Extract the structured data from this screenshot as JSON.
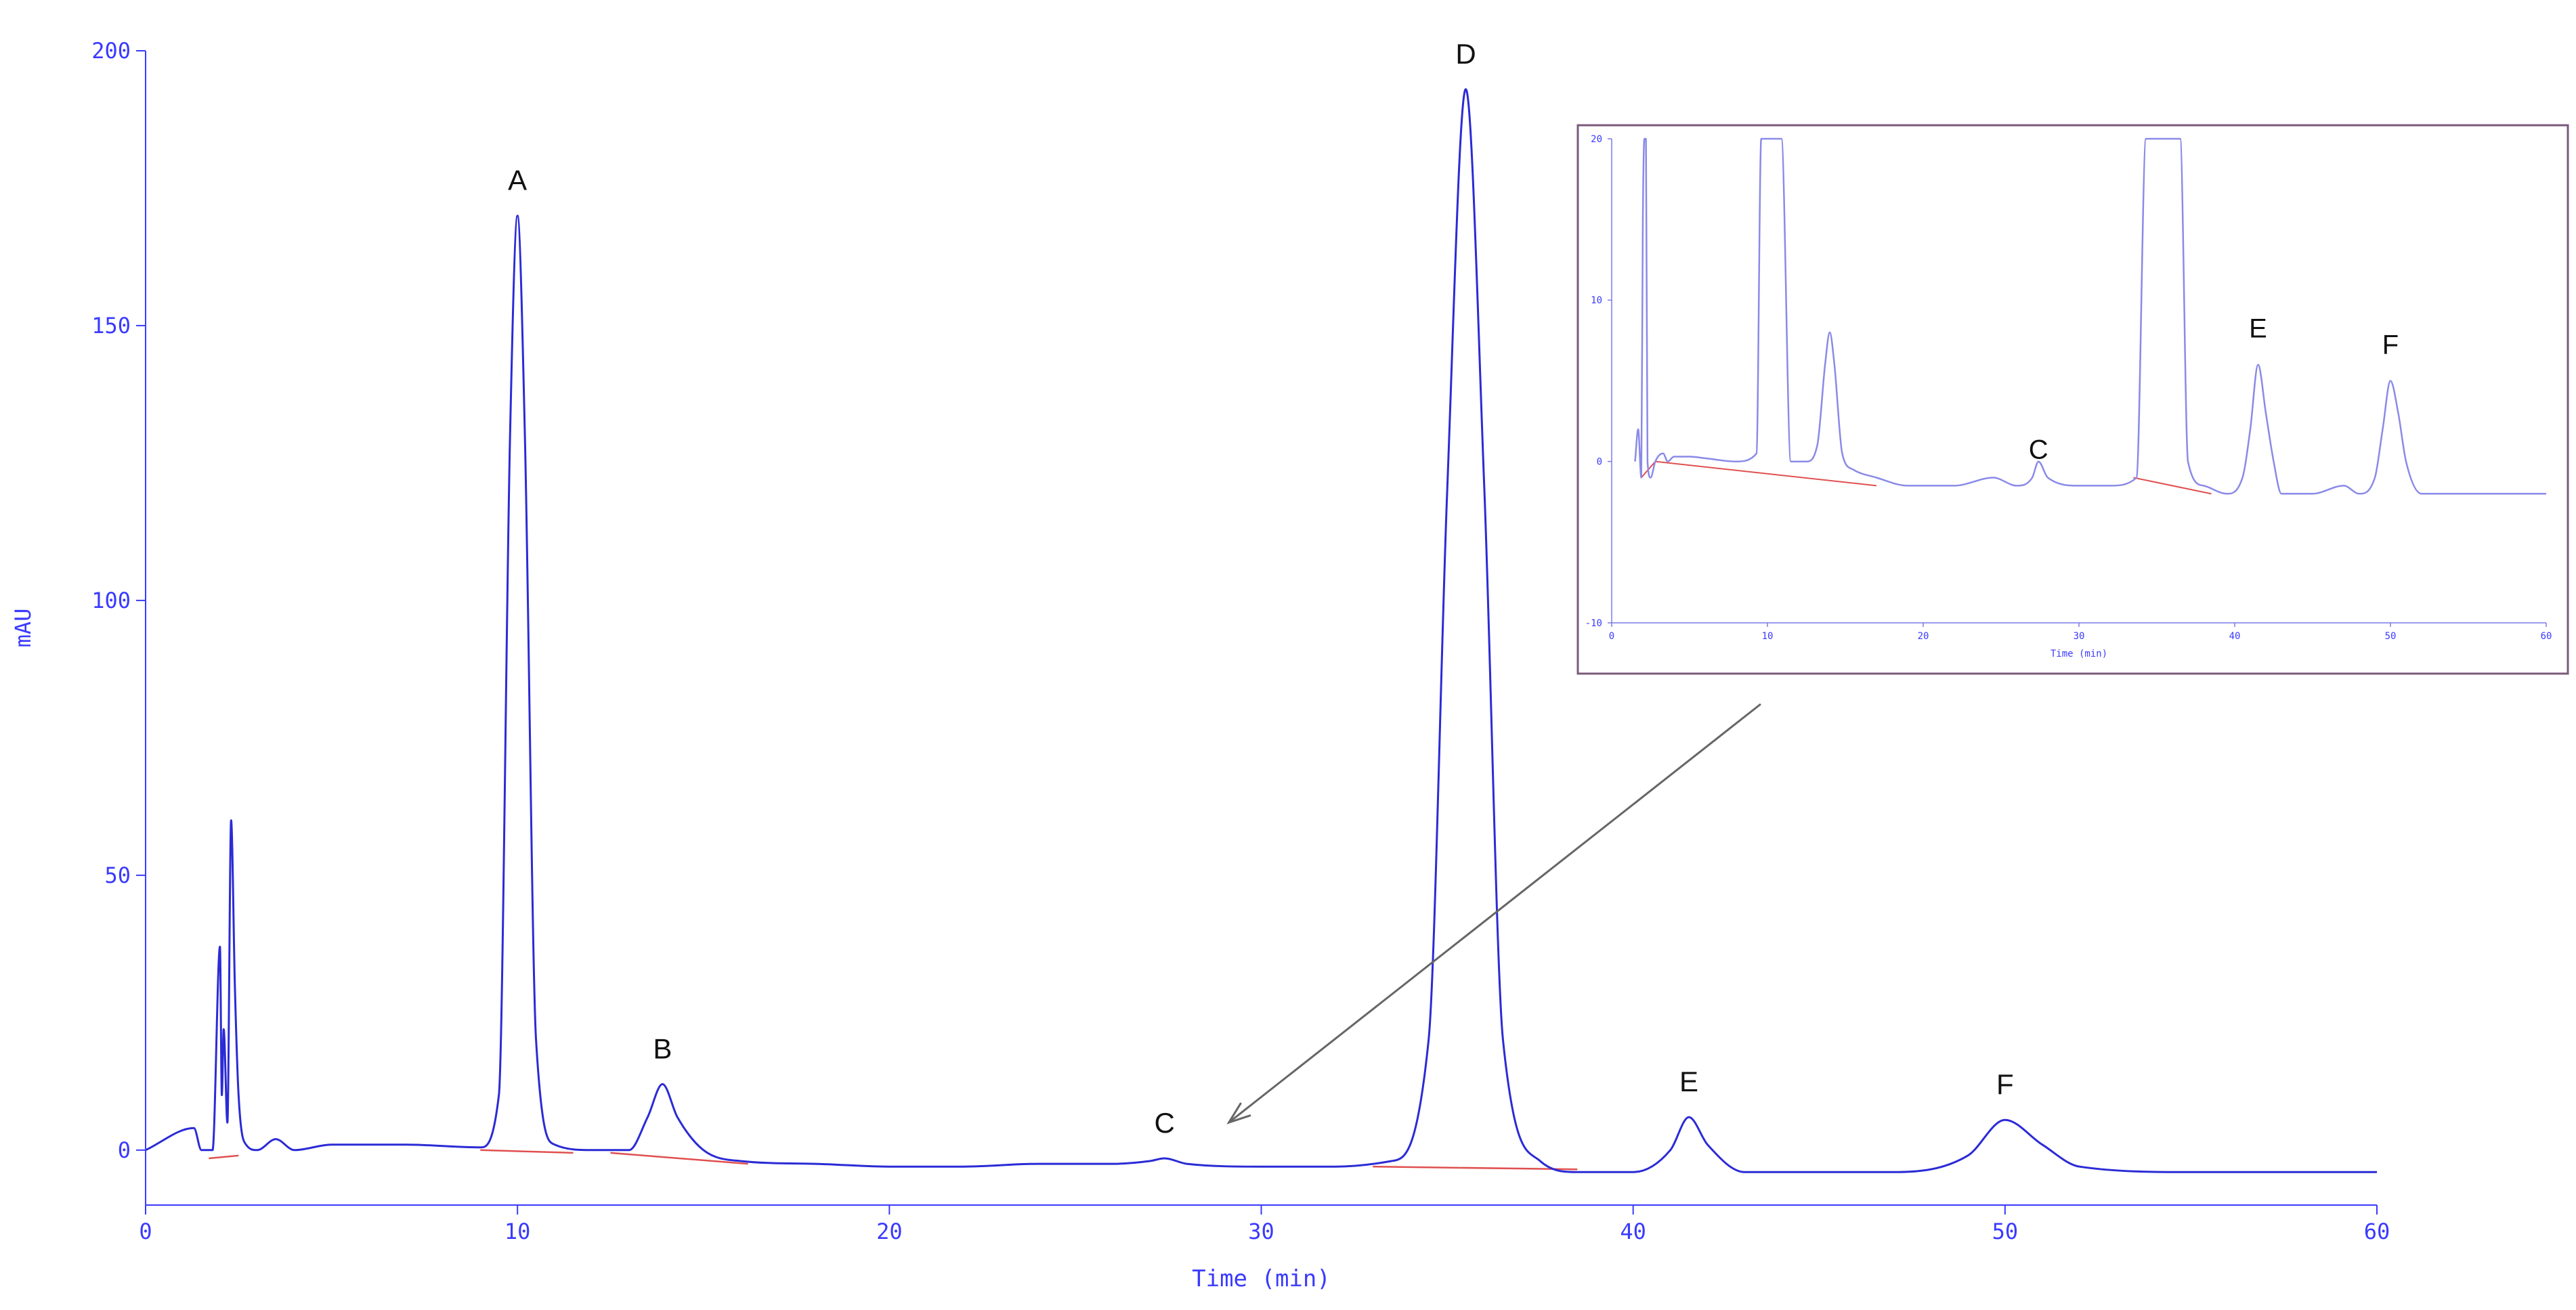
{
  "chart_data": [
    {
      "type": "line",
      "title": "",
      "xlabel": "Time (min)",
      "ylabel": "mAU",
      "xlim": [
        0,
        60
      ],
      "ylim": [
        -10,
        200
      ],
      "x_ticks": [
        "0",
        "10",
        "20",
        "30",
        "40",
        "50",
        "60"
      ],
      "y_ticks": [
        "0",
        "50",
        "100",
        "150",
        "200"
      ],
      "grid": false,
      "colors": {
        "trace": "#2b2bd6",
        "baseline": "#e05050",
        "axis": "#3a3aff"
      },
      "peaks": [
        {
          "label": "A",
          "time": 10.0,
          "height": 170
        },
        {
          "label": "B",
          "time": 13.9,
          "height": 12
        },
        {
          "label": "C",
          "time": 27.4,
          "height": -1.5
        },
        {
          "label": "D",
          "time": 35.5,
          "height": 193
        },
        {
          "label": "E",
          "time": 41.5,
          "height": 6
        },
        {
          "label": "F",
          "time": 50.0,
          "height": 5.5
        }
      ],
      "series": [
        {
          "x": [
            0,
            1.3,
            1.5,
            1.8,
            2.0,
            2.05,
            2.1,
            2.2,
            2.3,
            2.4,
            2.5,
            2.7,
            3.0,
            3.5,
            4.0,
            5,
            7,
            9,
            9.5,
            9.8,
            10.0,
            10.2,
            10.5,
            11,
            12,
            13,
            13.5,
            13.9,
            14.3,
            15,
            16,
            18,
            20,
            22,
            24,
            26,
            27,
            27.4,
            28,
            30,
            32,
            33.5,
            34.5,
            35.0,
            35.5,
            36.0,
            36.5,
            37.5,
            38.5,
            40,
            41,
            41.5,
            42,
            43,
            45,
            47,
            49,
            50,
            51,
            52,
            55,
            60
          ],
          "y": [
            0,
            4,
            0,
            0,
            37,
            10,
            22,
            5,
            60,
            30,
            10,
            1,
            0,
            2,
            0,
            1,
            1,
            0.5,
            10,
            130,
            170,
            130,
            20,
            1,
            0,
            0,
            6,
            12,
            6,
            0,
            -2,
            -2.5,
            -3,
            -3,
            -2.5,
            -2.5,
            -2,
            -1.5,
            -2.5,
            -3,
            -3,
            -2,
            20,
            120,
            193,
            120,
            20,
            -2,
            -4,
            -4,
            0,
            6,
            1,
            -4,
            -4,
            -4,
            -1,
            5.5,
            1,
            -3,
            -4,
            -4
          ]
        }
      ],
      "baselines": [
        {
          "x": [
            1.7,
            2.5
          ],
          "y": [
            -1.5,
            -1.0
          ]
        },
        {
          "x": [
            9.0,
            11.5
          ],
          "y": [
            0,
            -0.5
          ]
        },
        {
          "x": [
            12.5,
            16.2
          ],
          "y": [
            -0.5,
            -2.5
          ]
        },
        {
          "x": [
            33.0,
            38.5
          ],
          "y": [
            -3,
            -3.5
          ]
        }
      ]
    },
    {
      "type": "line",
      "title": "",
      "xlabel": "Time (min)",
      "ylabel": "",
      "xlim": [
        0,
        60
      ],
      "ylim": [
        -10,
        20
      ],
      "x_ticks": [
        "0",
        "10",
        "20",
        "30",
        "40",
        "50",
        "60"
      ],
      "y_ticks": [
        "-10",
        "0",
        "10",
        "20"
      ],
      "grid": false,
      "colors": {
        "trace": "#8a8ae8",
        "baseline": "#e05050",
        "frame": "#7a5a7a"
      },
      "peaks": [
        {
          "label": "C",
          "time": 27.4,
          "height": -1.5
        },
        {
          "label": "E",
          "time": 41.5,
          "height": 6
        },
        {
          "label": "F",
          "time": 50.0,
          "height": 5
        }
      ],
      "series": [
        {
          "x": [
            1.5,
            1.7,
            1.9,
            2.0,
            2.1,
            2.2,
            2.3,
            2.5,
            2.8,
            3.3,
            3.6,
            4,
            5,
            6,
            8,
            9.3,
            9.6,
            10.0,
            10.5,
            10.9,
            11.5,
            12.5,
            13.2,
            13.7,
            14.0,
            14.3,
            14.8,
            15.5,
            17,
            19,
            22,
            24.5,
            26,
            27,
            27.4,
            28,
            30,
            32,
            33.7,
            34.3,
            35,
            36,
            36.5,
            37,
            38,
            39.5,
            40.5,
            41,
            41.5,
            42,
            42.5,
            43,
            45,
            47,
            48,
            49,
            49.5,
            50,
            50.5,
            51,
            52,
            55,
            60
          ],
          "y": [
            0,
            2,
            -1,
            15,
            20,
            20,
            0,
            -1,
            0,
            0.5,
            0,
            0.3,
            0.3,
            0.2,
            0,
            0.5,
            20,
            20,
            20,
            20,
            0,
            0,
            1,
            6,
            8,
            6,
            0.5,
            -0.5,
            -1,
            -1.5,
            -1.5,
            -1,
            -1.5,
            -1,
            0,
            -1,
            -1.5,
            -1.5,
            -1,
            20,
            20,
            20,
            20,
            0,
            -1.5,
            -2,
            -1,
            2,
            6,
            3,
            0,
            -2,
            -2,
            -1.5,
            -2,
            -1,
            2,
            5,
            3,
            0,
            -2,
            -2,
            -2
          ]
        }
      ],
      "baselines": [
        {
          "x": [
            1.9,
            2.8
          ],
          "y": [
            -1,
            0
          ]
        },
        {
          "x": [
            2.8,
            17.0
          ],
          "y": [
            0,
            -1.5
          ]
        },
        {
          "x": [
            33.5,
            38.5
          ],
          "y": [
            -1,
            -2
          ]
        }
      ]
    }
  ],
  "inset_arrow": {
    "from_label": "C"
  }
}
